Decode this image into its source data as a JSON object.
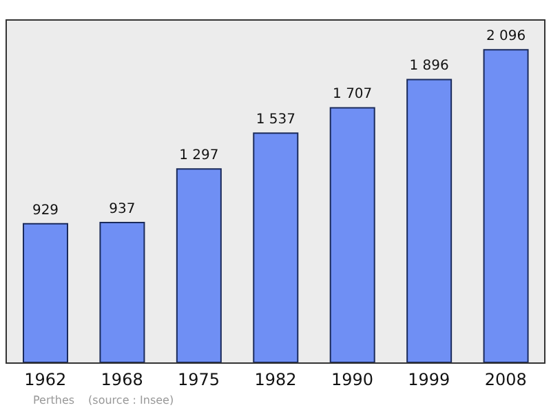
{
  "chart_data": {
    "type": "bar",
    "categories": [
      "1962",
      "1968",
      "1975",
      "1982",
      "1990",
      "1999",
      "2008"
    ],
    "values": [
      929,
      937,
      1297,
      1537,
      1707,
      1896,
      2096
    ],
    "value_labels": [
      "929",
      "937",
      "1 297",
      "1 537",
      "1 707",
      "1 896",
      "2 096"
    ],
    "color": "#6f8ff4",
    "ylim": [
      0,
      2300
    ],
    "tick_labels": "x",
    "annotations": [
      "Perthes",
      "(source : Insee)"
    ]
  }
}
